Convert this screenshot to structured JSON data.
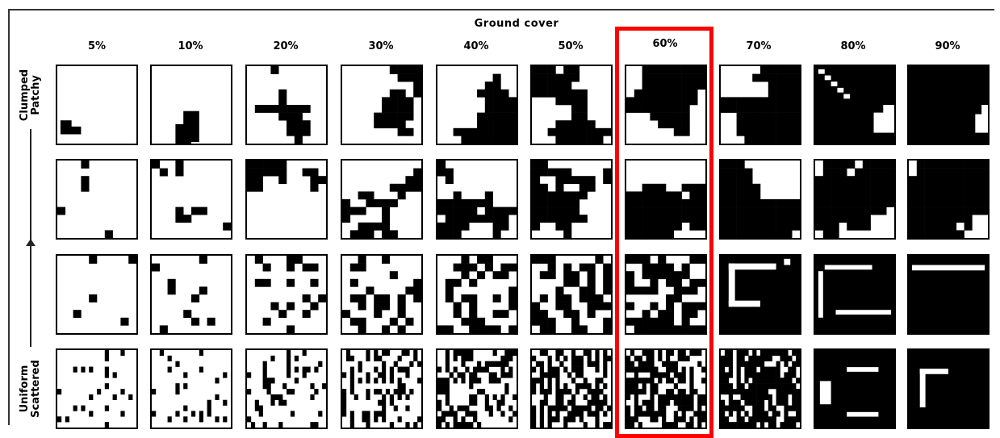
{
  "header": {
    "title": "Ground cover"
  },
  "columns": [
    "5%",
    "10%",
    "20%",
    "30%",
    "40%",
    "50%",
    "60%",
    "70%",
    "80%",
    "90%"
  ],
  "side_labels": {
    "top": [
      "Clumped",
      "Patchy"
    ],
    "bottom": [
      "Uniform",
      "Scattered"
    ]
  },
  "highlight": {
    "column": "60%",
    "color": "#ff0000"
  },
  "rows": [
    {
      "pattern": "clumped",
      "cover_fractions": [
        0.05,
        0.1,
        0.2,
        0.3,
        0.4,
        0.5,
        0.6,
        0.7,
        0.8,
        0.9
      ]
    },
    {
      "pattern": "patchy",
      "cover_fractions": [
        0.05,
        0.1,
        0.2,
        0.3,
        0.4,
        0.5,
        0.6,
        0.7,
        0.8,
        0.9
      ]
    },
    {
      "pattern": "scattered",
      "cover_fractions": [
        0.05,
        0.1,
        0.2,
        0.3,
        0.4,
        0.5,
        0.6,
        0.7,
        0.8,
        0.9
      ]
    },
    {
      "pattern": "uniform",
      "cover_fractions": [
        0.05,
        0.1,
        0.2,
        0.3,
        0.4,
        0.5,
        0.6,
        0.7,
        0.8,
        0.9
      ]
    }
  ]
}
